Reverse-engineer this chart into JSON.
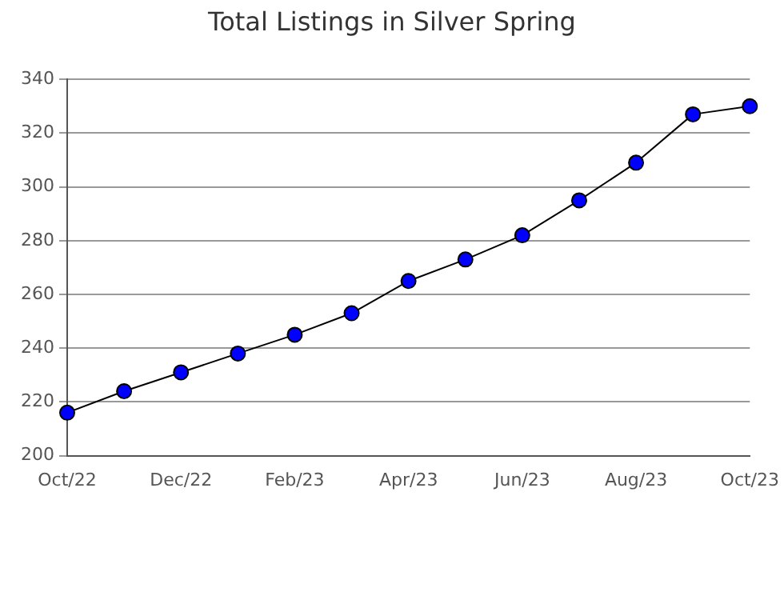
{
  "chart_data": {
    "type": "line",
    "title": "Total Listings in Silver Spring",
    "categories": [
      "Oct/22",
      null,
      "Dec/22",
      null,
      "Feb/23",
      null,
      "Apr/23",
      null,
      "Jun/23",
      null,
      "Aug/23",
      null,
      "Oct/23"
    ],
    "series": [
      {
        "color": "#0000ff",
        "values": [
          216,
          224,
          231,
          238,
          245,
          253,
          265,
          273,
          282,
          295,
          309,
          327,
          330
        ]
      }
    ],
    "ylim": [
      200,
      340
    ],
    "yticks": [
      200,
      220,
      240,
      260,
      280,
      300,
      320,
      340
    ],
    "grid": "y",
    "legend": false,
    "marker": "circle",
    "line_style": "solid"
  }
}
